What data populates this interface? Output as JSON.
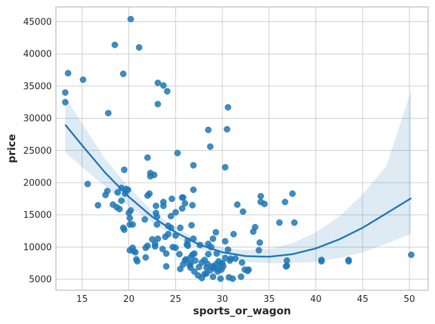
{
  "chart_data": {
    "type": "scatter",
    "title": "",
    "xlabel": "sports_or_wagon",
    "ylabel": "price",
    "xlim": [
      12.2,
      52.0
    ],
    "ylim": [
      3300,
      47300
    ],
    "xticks": [
      15,
      20,
      25,
      30,
      35,
      40,
      45,
      50
    ],
    "yticks": [
      5000,
      10000,
      15000,
      20000,
      25000,
      30000,
      35000,
      40000,
      45000
    ],
    "grid": true,
    "colors": {
      "points": "#1f77b4",
      "line": "#1f77b4",
      "band": "#1f77b4",
      "grid": "#cccccc",
      "axes": "#aaaaaa"
    },
    "points": [
      [
        13.2,
        34000
      ],
      [
        13.2,
        32500
      ],
      [
        13.5,
        37000
      ],
      [
        15.1,
        36000
      ],
      [
        15.6,
        19800
      ],
      [
        16.7,
        16500
      ],
      [
        17.5,
        18100
      ],
      [
        17.7,
        18700
      ],
      [
        17.8,
        30800
      ],
      [
        18.3,
        16600
      ],
      [
        18.5,
        41400
      ],
      [
        18.7,
        16200
      ],
      [
        18.8,
        18500
      ],
      [
        19.0,
        15900
      ],
      [
        19.2,
        19200
      ],
      [
        19.2,
        17200
      ],
      [
        19.4,
        36900
      ],
      [
        19.4,
        13000
      ],
      [
        19.5,
        22000
      ],
      [
        19.5,
        12700
      ],
      [
        19.6,
        18300
      ],
      [
        19.7,
        19000
      ],
      [
        19.9,
        18900
      ],
      [
        20.0,
        15300
      ],
      [
        20.2,
        45400
      ],
      [
        20.2,
        15700
      ],
      [
        20.1,
        14500
      ],
      [
        20.1,
        13500
      ],
      [
        20.4,
        13500
      ],
      [
        20.1,
        9500
      ],
      [
        20.4,
        9900
      ],
      [
        20.5,
        9400
      ],
      [
        20.7,
        9200
      ],
      [
        20.8,
        8100
      ],
      [
        20.9,
        7800
      ],
      [
        21.1,
        41000
      ],
      [
        21.7,
        14300
      ],
      [
        21.8,
        9900
      ],
      [
        21.8,
        8400
      ],
      [
        22.0,
        10200
      ],
      [
        22.0,
        23900
      ],
      [
        22.0,
        18000
      ],
      [
        22.2,
        18300
      ],
      [
        22.3,
        21000
      ],
      [
        22.3,
        21500
      ],
      [
        22.5,
        11200
      ],
      [
        22.7,
        21200
      ],
      [
        22.8,
        10500
      ],
      [
        22.8,
        10100
      ],
      [
        22.9,
        15300
      ],
      [
        23.0,
        14700
      ],
      [
        23.0,
        13500
      ],
      [
        22.9,
        16400
      ],
      [
        23.1,
        35500
      ],
      [
        23.1,
        32200
      ],
      [
        23.1,
        11300
      ],
      [
        23.6,
        9700
      ],
      [
        23.7,
        35100
      ],
      [
        23.7,
        17000
      ],
      [
        23.7,
        16400
      ],
      [
        23.9,
        11600
      ],
      [
        24.0,
        7000
      ],
      [
        24.0,
        9000
      ],
      [
        24.1,
        34200
      ],
      [
        24.2,
        12000
      ],
      [
        24.2,
        13300
      ],
      [
        24.5,
        13000
      ],
      [
        24.5,
        14800
      ],
      [
        24.6,
        17500
      ],
      [
        24.7,
        10000
      ],
      [
        25.0,
        9900
      ],
      [
        25.0,
        11800
      ],
      [
        25.0,
        15400
      ],
      [
        25.2,
        24600
      ],
      [
        25.4,
        8900
      ],
      [
        25.5,
        13000
      ],
      [
        25.5,
        6600
      ],
      [
        25.7,
        17700
      ],
      [
        25.7,
        16000
      ],
      [
        25.8,
        7300
      ],
      [
        25.8,
        17700
      ],
      [
        26.0,
        16800
      ],
      [
        26.0,
        7900
      ],
      [
        26.1,
        8100
      ],
      [
        26.2,
        10400
      ],
      [
        26.3,
        10200
      ],
      [
        26.3,
        11000
      ],
      [
        26.5,
        7200
      ],
      [
        26.6,
        6800
      ],
      [
        26.6,
        8400
      ],
      [
        26.6,
        7500
      ],
      [
        26.7,
        13400
      ],
      [
        26.8,
        8800
      ],
      [
        26.8,
        16500
      ],
      [
        26.9,
        18900
      ],
      [
        26.9,
        22700
      ],
      [
        26.9,
        11300
      ],
      [
        27.0,
        9000
      ],
      [
        27.0,
        6200
      ],
      [
        27.1,
        7900
      ],
      [
        27.4,
        5600
      ],
      [
        27.5,
        6900
      ],
      [
        27.6,
        10300
      ],
      [
        27.8,
        5200
      ],
      [
        27.8,
        7600
      ],
      [
        28.1,
        5800
      ],
      [
        28.1,
        8000
      ],
      [
        28.3,
        6800
      ],
      [
        28.3,
        5900
      ],
      [
        28.4,
        7400
      ],
      [
        28.5,
        8900
      ],
      [
        28.5,
        10500
      ],
      [
        28.5,
        28200
      ],
      [
        28.7,
        25600
      ],
      [
        28.7,
        6400
      ],
      [
        28.8,
        10000
      ],
      [
        28.9,
        7000
      ],
      [
        29.0,
        11300
      ],
      [
        29.0,
        5400
      ],
      [
        29.1,
        6900
      ],
      [
        29.1,
        6700
      ],
      [
        29.3,
        12300
      ],
      [
        29.3,
        7300
      ],
      [
        29.4,
        9000
      ],
      [
        29.5,
        6200
      ],
      [
        29.6,
        6600
      ],
      [
        29.6,
        7800
      ],
      [
        29.8,
        7400
      ],
      [
        29.8,
        5100
      ],
      [
        29.9,
        6500
      ],
      [
        30.0,
        7500
      ],
      [
        30.1,
        7000
      ],
      [
        30.3,
        22400
      ],
      [
        30.3,
        8300
      ],
      [
        30.3,
        10900
      ],
      [
        30.5,
        28300
      ],
      [
        30.6,
        31700
      ],
      [
        30.6,
        9600
      ],
      [
        30.7,
        5300
      ],
      [
        30.8,
        7900
      ],
      [
        30.9,
        8200
      ],
      [
        31.1,
        5100
      ],
      [
        31.2,
        12000
      ],
      [
        31.4,
        8200
      ],
      [
        31.6,
        16600
      ],
      [
        32.0,
        5400
      ],
      [
        32.1,
        7600
      ],
      [
        32.2,
        15500
      ],
      [
        32.4,
        6500
      ],
      [
        32.7,
        6300
      ],
      [
        32.8,
        6500
      ],
      [
        33.3,
        12400
      ],
      [
        33.5,
        13100
      ],
      [
        33.9,
        9500
      ],
      [
        34.0,
        10700
      ],
      [
        34.1,
        17000
      ],
      [
        34.1,
        17900
      ],
      [
        34.5,
        16700
      ],
      [
        36.1,
        13800
      ],
      [
        36.7,
        17000
      ],
      [
        36.8,
        7000
      ],
      [
        36.9,
        7100
      ],
      [
        36.9,
        7900
      ],
      [
        37.5,
        18300
      ],
      [
        37.7,
        13800
      ],
      [
        40.6,
        7800
      ],
      [
        40.6,
        8000
      ],
      [
        43.5,
        7800
      ],
      [
        43.5,
        8000
      ],
      [
        50.2,
        8800
      ]
    ],
    "fit": {
      "x": [
        13.2,
        15,
        17.5,
        20,
        22.5,
        25,
        27.5,
        30,
        32.5,
        35,
        37.5,
        40,
        42.5,
        45,
        47.5,
        50.2
      ],
      "y": [
        29000,
        25800,
        21500,
        17800,
        14700,
        12300,
        10400,
        9200,
        8600,
        8500,
        8900,
        9800,
        11200,
        13000,
        15200,
        17600
      ],
      "ci_low": [
        24700,
        22400,
        19400,
        16300,
        13800,
        11500,
        9800,
        8500,
        7700,
        7500,
        7500,
        7700,
        8300,
        9200,
        10500,
        12100
      ],
      "ci_high": [
        33300,
        29200,
        23600,
        19300,
        15600,
        13100,
        11000,
        9900,
        9500,
        9700,
        10600,
        12300,
        14700,
        18200,
        22500,
        34300
      ]
    }
  }
}
